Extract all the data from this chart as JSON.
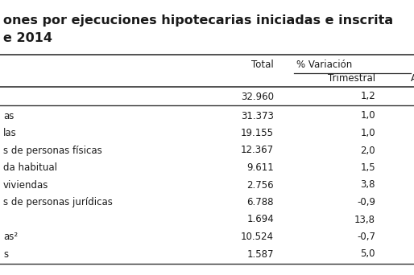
{
  "title_line1": "ones por ejecuciones hipotecarias iniciadas e inscrita",
  "title_line2": "e 2014",
  "rows": [
    {
      "label": "",
      "total": "32.960",
      "trimestral": "1,2"
    },
    {
      "label": "as",
      "total": "31.373",
      "trimestral": "1,0"
    },
    {
      "label": "las",
      "total": "19.155",
      "trimestral": "1,0"
    },
    {
      "label": "s de personas físicas",
      "total": "12.367",
      "trimestral": "2,0"
    },
    {
      "label": "da habitual",
      "total": "9.611",
      "trimestral": "1,5"
    },
    {
      "label": "viviendas",
      "total": "2.756",
      "trimestral": "3,8"
    },
    {
      "label": "s de personas jurídicas",
      "total": "6.788",
      "trimestral": "-0,9"
    },
    {
      "label": "",
      "total": "1.694",
      "trimestral": "13,8"
    },
    {
      "label": "as²",
      "total": "10.524",
      "trimestral": "-0,7"
    },
    {
      "label": "s",
      "total": "1.587",
      "trimestral": "5,0"
    }
  ],
  "bg_color": "#ffffff",
  "text_color": "#1a1a1a",
  "line_color": "#333333",
  "title_fontsize": 11.5,
  "data_fontsize": 8.5,
  "header_fontsize": 8.5
}
